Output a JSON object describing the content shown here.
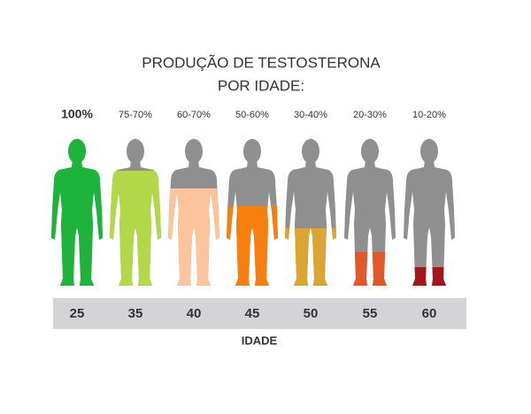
{
  "title": [
    "PRODUÇÃO DE TESTOSTERONA",
    "POR IDADE:"
  ],
  "figures": [
    {
      "label": "100%",
      "age": "25",
      "color": "#1db33c"
    },
    {
      "label": "75-70%",
      "age": "35",
      "color": "#b2d748"
    },
    {
      "label": "60-70%",
      "age": "40",
      "color": "#fcc49c"
    },
    {
      "label": "50-60%",
      "age": "45",
      "color": "#f77f0f"
    },
    {
      "label": "30-40%",
      "age": "50",
      "color": "#dba531"
    },
    {
      "label": "20-30%",
      "age": "55",
      "color": "#e0582b"
    },
    {
      "label": "10-20%",
      "age": "60",
      "color": "#a3161e"
    }
  ],
  "axis_label": "IDADE"
}
